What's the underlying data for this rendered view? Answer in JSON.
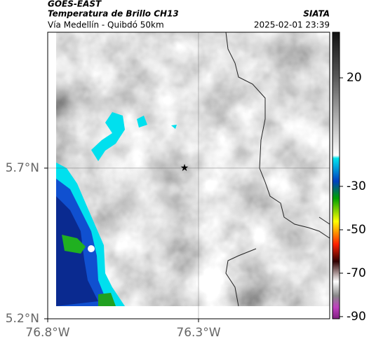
{
  "header": {
    "source": "GOES-EAST",
    "title": "Temperatura de Brillo CH13",
    "brand": "SIATA",
    "subtitle": "Vía Medellín - Quibdó 50km",
    "timestamp": "2025-02-01 23:39"
  },
  "map": {
    "xlim": [
      -76.8,
      -75.865
    ],
    "ylim": [
      5.2,
      6.151
    ],
    "xticks": [
      {
        "value": -76.8,
        "label": "76.8°W"
      },
      {
        "value": -76.3,
        "label": "76.3°W"
      }
    ],
    "yticks": [
      {
        "value": 5.2,
        "label": "5.2°N"
      },
      {
        "value": 5.7,
        "label": "5.7°N"
      }
    ],
    "grid": true
  },
  "colorbar": {
    "lim": [
      -91,
      41
    ],
    "ticks": [
      20,
      -30,
      -50,
      -70,
      -90
    ]
  }
}
